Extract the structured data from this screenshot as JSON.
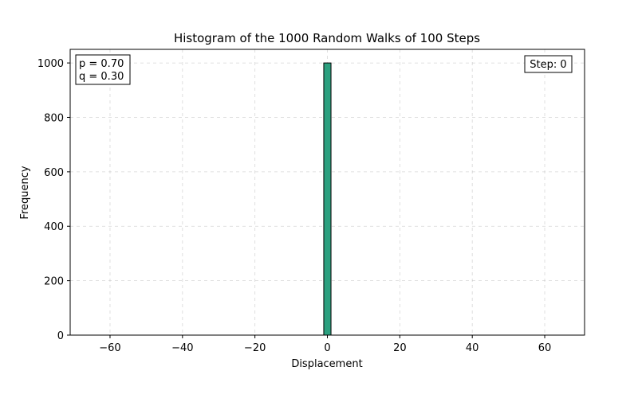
{
  "chart_data": {
    "type": "bar",
    "title": "Histogram of the 1000 Random Walks of 100 Steps",
    "xlabel": "Displacement",
    "ylabel": "Frequency",
    "xlim": [
      -71,
      71
    ],
    "ylim": [
      0,
      1050
    ],
    "xticks": [
      -60,
      -40,
      -20,
      0,
      20,
      40,
      60
    ],
    "yticks": [
      0,
      200,
      400,
      600,
      800,
      1000
    ],
    "grid": true,
    "bin_range": [
      -65,
      65
    ],
    "bin_width": 2,
    "bars": [
      {
        "x0": -1,
        "x1": 1,
        "value": 1000
      }
    ],
    "bar_color": "#2ca07f",
    "annotations": {
      "params": {
        "p": "p = 0.70",
        "q": "q = 0.30",
        "placement": "top-left"
      },
      "step": {
        "text": "Step: 0",
        "placement": "top-right"
      }
    }
  }
}
